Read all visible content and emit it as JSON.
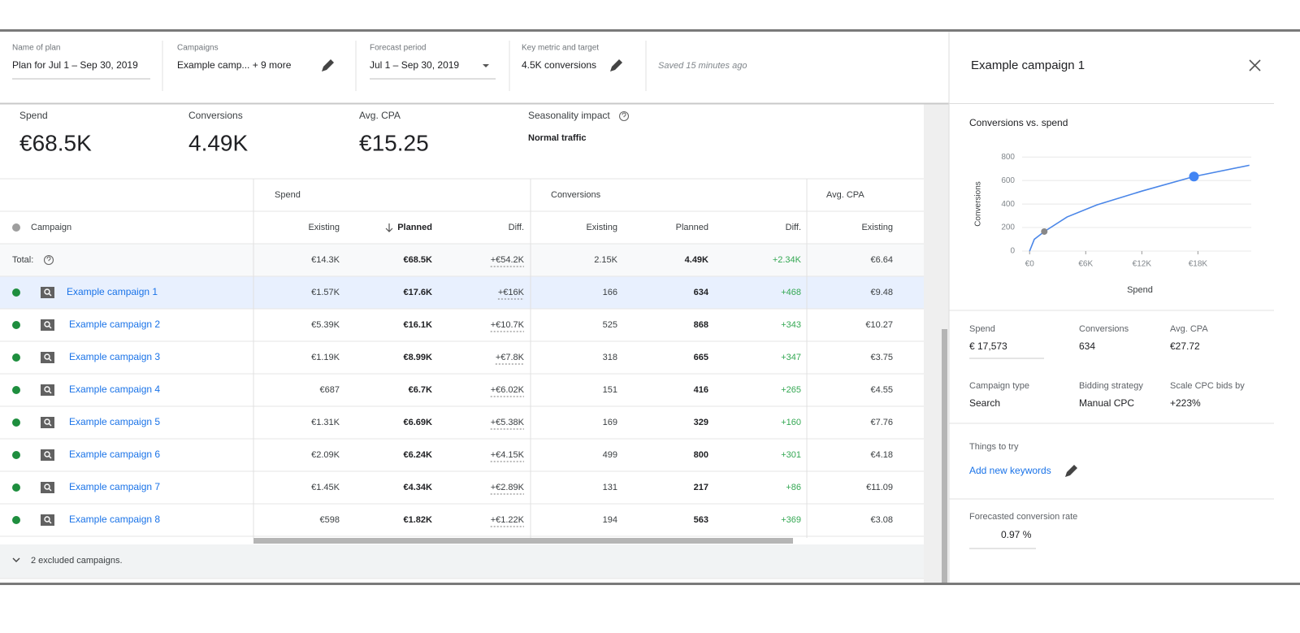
{
  "header": {
    "fields": [
      {
        "label": "Name of plan",
        "value": "Plan for Jul 1 – Sep 30, 2019"
      },
      {
        "label": "Campaigns",
        "value": "Example camp... + 9 more"
      },
      {
        "label": "Forecast period",
        "value": "Jul 1 – Sep 30, 2019"
      },
      {
        "label": "Key metric and target",
        "value": "4.5K conversions"
      }
    ],
    "saved": "Saved 15 minutes ago"
  },
  "summary": [
    {
      "label": "Spend",
      "value": "€68.5K"
    },
    {
      "label": "Conversions",
      "value": "4.49K"
    },
    {
      "label": "Avg. CPA",
      "value": "€15.25"
    },
    {
      "label": "Seasonality impact",
      "value": "Normal traffic"
    }
  ],
  "table": {
    "groups": [
      "Spend",
      "Conversions",
      "Avg. CPA"
    ],
    "columns": [
      "Campaign",
      "Existing",
      "Planned",
      "Diff.",
      "Existing",
      "Planned",
      "Diff.",
      "Existing"
    ],
    "total": [
      "Total:",
      "€14.3K",
      "€68.5K",
      "+€54.2K",
      "2.15K",
      "4.49K",
      "+2.34K",
      "€6.64"
    ],
    "rows": [
      [
        "Example campaign 1",
        "€1.57K",
        "€17.6K",
        "+€16K",
        "166",
        "634",
        "+468",
        "€9.48"
      ],
      [
        "Example campaign 2",
        "€5.39K",
        "€16.1K",
        "+€10.7K",
        "525",
        "868",
        "+343",
        "€10.27"
      ],
      [
        "Example campaign 3",
        "€1.19K",
        "€8.99K",
        "+€7.8K",
        "318",
        "665",
        "+347",
        "€3.75"
      ],
      [
        "Example campaign 4",
        "€687",
        "€6.7K",
        "+€6.02K",
        "151",
        "416",
        "+265",
        "€4.55"
      ],
      [
        "Example campaign 5",
        "€1.31K",
        "€6.69K",
        "+€5.38K",
        "169",
        "329",
        "+160",
        "€7.76"
      ],
      [
        "Example campaign 6",
        "€2.09K",
        "€6.24K",
        "+€4.15K",
        "499",
        "800",
        "+301",
        "€4.18"
      ],
      [
        "Example campaign 7",
        "€1.45K",
        "€4.34K",
        "+€2.89K",
        "131",
        "217",
        "+86",
        "€11.09"
      ],
      [
        "Example campaign 8",
        "€598",
        "€1.82K",
        "+€1.22K",
        "194",
        "563",
        "+369",
        "€3.08"
      ]
    ],
    "footer": "2 excluded campaigns."
  },
  "panel": {
    "title": "Example campaign 1",
    "stats": [
      {
        "label": "Spend",
        "value": "€ 17,573"
      },
      {
        "label": "Conversions",
        "value": "634"
      },
      {
        "label": "Avg. CPA",
        "value": "€27.72"
      },
      {
        "label": "Campaign type",
        "value": "Search"
      },
      {
        "label": "Bidding strategy",
        "value": "Manual CPC"
      },
      {
        "label": "Scale CPC bids by",
        "value": "+223%"
      }
    ],
    "things_title": "Things to try",
    "things_link": "Add new keywords",
    "rate_label": "Forecasted conversion rate",
    "rate_value": "0.97 %"
  },
  "chart_data": {
    "type": "line",
    "title": "Conversions vs. spend",
    "x_label": "Spend",
    "y_label": "Conversions",
    "x": [
      0,
      500,
      1570,
      4000,
      7200,
      12000,
      17573,
      23500
    ],
    "values": [
      0,
      100,
      166,
      290,
      393,
      510,
      634,
      730
    ],
    "color": "#4a86e8",
    "points": [
      {
        "x": 1570,
        "y": 166,
        "color": "#888888"
      },
      {
        "x": 17573,
        "y": 634,
        "color": "#4285f4"
      }
    ],
    "xlim": [
      -800,
      23700
    ],
    "ylim": [
      0,
      850
    ],
    "xticks": [
      {
        "value": 0,
        "label": "€0"
      },
      {
        "value": 6000,
        "label": "€6K"
      },
      {
        "value": 12000,
        "label": "€12K"
      },
      {
        "value": 18000,
        "label": "€18K"
      }
    ],
    "yticks": [
      0,
      200,
      400,
      600,
      800
    ],
    "grid": true
  }
}
